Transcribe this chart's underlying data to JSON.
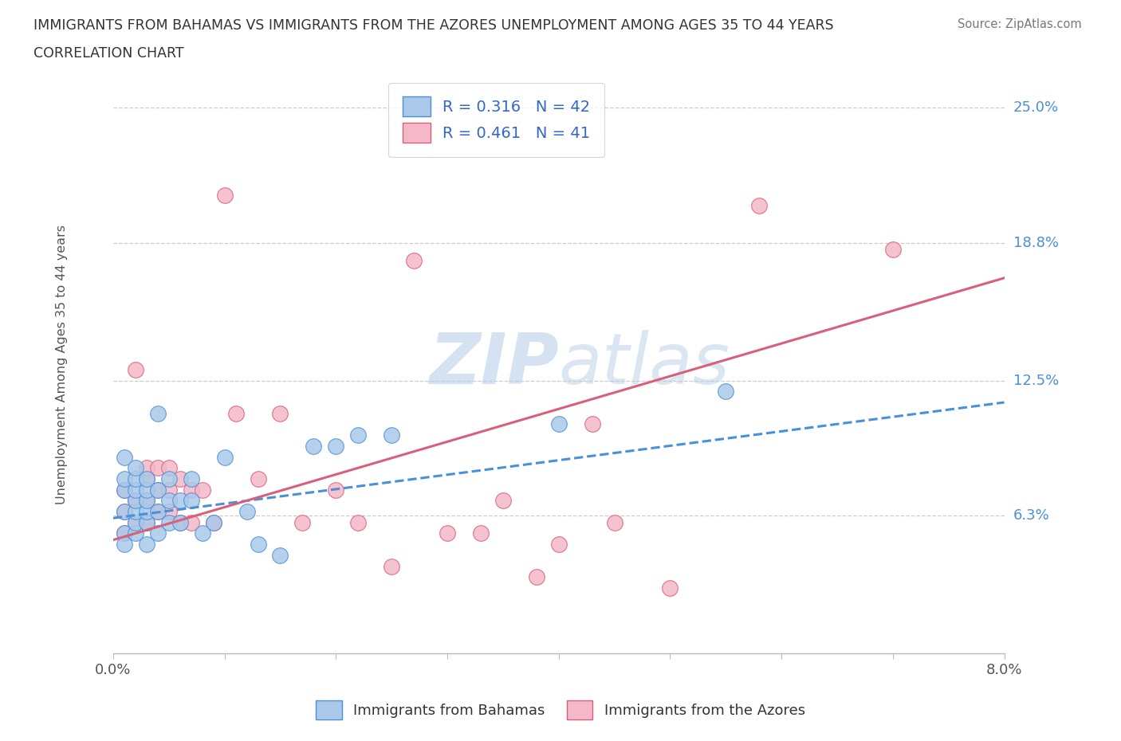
{
  "title_line1": "IMMIGRANTS FROM BAHAMAS VS IMMIGRANTS FROM THE AZORES UNEMPLOYMENT AMONG AGES 35 TO 44 YEARS",
  "title_line2": "CORRELATION CHART",
  "source_text": "Source: ZipAtlas.com",
  "ylabel": "Unemployment Among Ages 35 to 44 years",
  "xlim": [
    0.0,
    0.08
  ],
  "ylim": [
    0.0,
    0.265
  ],
  "xticks": [
    0.0,
    0.01,
    0.02,
    0.03,
    0.04,
    0.05,
    0.06,
    0.07,
    0.08
  ],
  "xticklabels": [
    "0.0%",
    "",
    "",
    "",
    "",
    "",
    "",
    "",
    "8.0%"
  ],
  "ytick_positions": [
    0.063,
    0.125,
    0.188,
    0.25
  ],
  "ytick_labels": [
    "6.3%",
    "12.5%",
    "18.8%",
    "25.0%"
  ],
  "bahamas_R": 0.316,
  "bahamas_N": 42,
  "azores_R": 0.461,
  "azores_N": 41,
  "blue_color": "#aac9e8",
  "blue_line_color": "#4a90d9",
  "pink_color": "#f4b8c8",
  "pink_line_color": "#d9607a",
  "legend_r_n_color": "#3366cc",
  "watermark_color": "#c8d8ea",
  "bahamas_x": [
    0.001,
    0.001,
    0.001,
    0.001,
    0.001,
    0.001,
    0.002,
    0.002,
    0.002,
    0.002,
    0.002,
    0.002,
    0.002,
    0.003,
    0.003,
    0.003,
    0.003,
    0.003,
    0.003,
    0.004,
    0.004,
    0.004,
    0.004,
    0.005,
    0.005,
    0.005,
    0.006,
    0.006,
    0.007,
    0.007,
    0.008,
    0.009,
    0.01,
    0.012,
    0.013,
    0.015,
    0.018,
    0.02,
    0.022,
    0.025,
    0.04,
    0.055
  ],
  "bahamas_y": [
    0.055,
    0.065,
    0.075,
    0.08,
    0.09,
    0.05,
    0.055,
    0.06,
    0.065,
    0.07,
    0.075,
    0.08,
    0.085,
    0.05,
    0.06,
    0.065,
    0.07,
    0.075,
    0.08,
    0.055,
    0.065,
    0.075,
    0.11,
    0.06,
    0.07,
    0.08,
    0.06,
    0.07,
    0.07,
    0.08,
    0.055,
    0.06,
    0.09,
    0.065,
    0.05,
    0.045,
    0.095,
    0.095,
    0.1,
    0.1,
    0.105,
    0.12
  ],
  "azores_x": [
    0.001,
    0.001,
    0.001,
    0.002,
    0.002,
    0.002,
    0.003,
    0.003,
    0.003,
    0.003,
    0.004,
    0.004,
    0.004,
    0.005,
    0.005,
    0.005,
    0.006,
    0.006,
    0.007,
    0.007,
    0.008,
    0.009,
    0.01,
    0.011,
    0.013,
    0.015,
    0.017,
    0.02,
    0.022,
    0.025,
    0.027,
    0.03,
    0.033,
    0.035,
    0.038,
    0.04,
    0.043,
    0.045,
    0.05,
    0.058,
    0.07
  ],
  "azores_y": [
    0.055,
    0.065,
    0.075,
    0.06,
    0.07,
    0.13,
    0.06,
    0.07,
    0.08,
    0.085,
    0.065,
    0.075,
    0.085,
    0.065,
    0.075,
    0.085,
    0.06,
    0.08,
    0.06,
    0.075,
    0.075,
    0.06,
    0.21,
    0.11,
    0.08,
    0.11,
    0.06,
    0.075,
    0.06,
    0.04,
    0.18,
    0.055,
    0.055,
    0.07,
    0.035,
    0.05,
    0.105,
    0.06,
    0.03,
    0.205,
    0.185
  ],
  "bahamas_trend_x": [
    0.0,
    0.08
  ],
  "bahamas_trend_y": [
    0.062,
    0.115
  ],
  "azores_trend_x": [
    0.0,
    0.08
  ],
  "azores_trend_y": [
    0.052,
    0.172
  ]
}
